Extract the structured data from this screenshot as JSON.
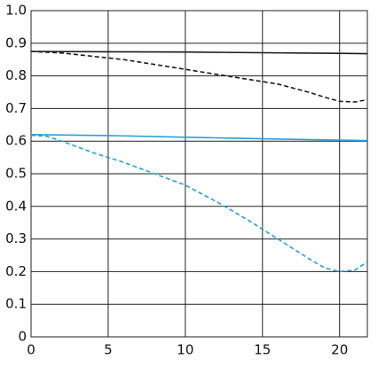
{
  "chart_data": {
    "type": "line",
    "xlim": [
      0,
      21.8
    ],
    "ylim": [
      0,
      1
    ],
    "xticks": [
      0,
      5,
      10,
      15,
      20
    ],
    "yticks": [
      0,
      0.1,
      0.2,
      0.3,
      0.4,
      0.5,
      0.6,
      0.7,
      0.8,
      0.9,
      {
        "value": 1,
        "label": "1.0"
      }
    ],
    "grid": true,
    "series": [
      {
        "color": "#1a1a1a",
        "dash": false,
        "x": [
          0,
          5,
          10,
          15,
          20,
          21.8
        ],
        "values": [
          0.875,
          0.874,
          0.873,
          0.871,
          0.869,
          0.868
        ]
      },
      {
        "color": "#1a1a1a",
        "dash": true,
        "x": [
          0,
          2,
          4,
          6,
          8,
          10,
          12,
          14,
          16,
          18,
          19,
          20,
          21,
          21.8
        ],
        "values": [
          0.875,
          0.87,
          0.86,
          0.85,
          0.835,
          0.82,
          0.805,
          0.79,
          0.775,
          0.75,
          0.735,
          0.722,
          0.72,
          0.727
        ]
      },
      {
        "color": "#2a9fd6",
        "dash": false,
        "x": [
          0,
          5,
          10,
          15,
          20,
          21.8
        ],
        "values": [
          0.62,
          0.617,
          0.612,
          0.607,
          0.603,
          0.602
        ]
      },
      {
        "color": "#2a9fd6",
        "dash": true,
        "x": [
          0,
          1,
          2,
          4,
          6,
          8,
          10,
          12,
          14,
          16,
          18,
          19,
          20,
          21,
          21.8
        ],
        "values": [
          0.618,
          0.615,
          0.6,
          0.565,
          0.535,
          0.5,
          0.465,
          0.415,
          0.36,
          0.3,
          0.24,
          0.212,
          0.2,
          0.205,
          0.23
        ]
      }
    ]
  }
}
